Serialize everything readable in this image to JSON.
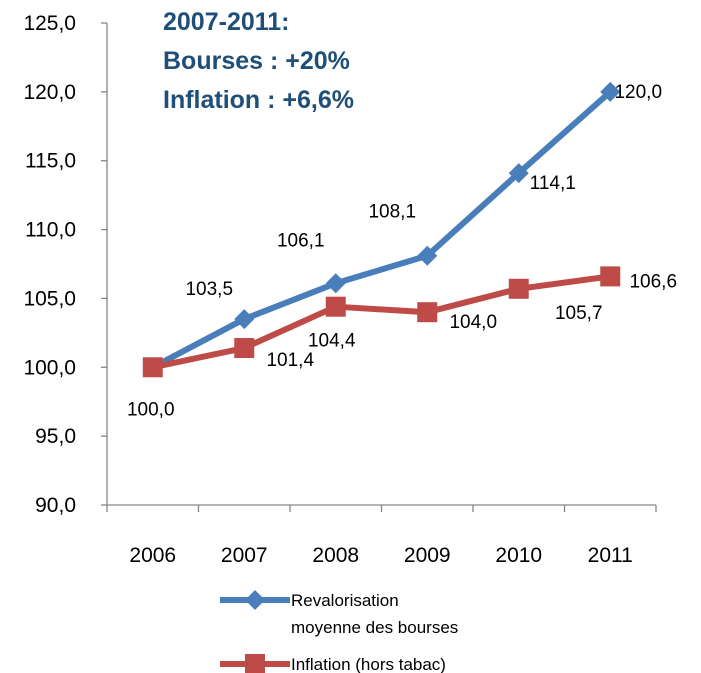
{
  "chart_data": {
    "type": "line",
    "categories": [
      "2006",
      "2007",
      "2008",
      "2009",
      "2010",
      "2011"
    ],
    "ylim": [
      90,
      125
    ],
    "yticks": [
      "90,0",
      "95,0",
      "100,0",
      "105,0",
      "110,0",
      "115,0",
      "120,0",
      "125,0"
    ],
    "grid": false,
    "legend_position": "bottom",
    "annotation": [
      "2007-2011:",
      "Bourses : +20%",
      "Inflation : +6,6%"
    ],
    "annotation_color": "#1F4E79",
    "series": [
      {
        "name_lines": [
          "Revalorisation",
          "moyenne des bourses"
        ],
        "color": "#4A7EBB",
        "marker": "diamond",
        "values": [
          100.0,
          103.5,
          106.1,
          108.1,
          114.1,
          120.0
        ],
        "labels": [
          "",
          "103,5",
          "106,1",
          "108,1",
          "114,1",
          "120,0"
        ]
      },
      {
        "name_lines": [
          "Inflation (hors tabac)"
        ],
        "color": "#BE4B48",
        "marker": "square",
        "values": [
          100.0,
          101.4,
          104.4,
          104.0,
          105.7,
          106.6
        ],
        "labels": [
          "100,0",
          "101,4",
          "104,4",
          "104,0",
          "105,7",
          "106,6"
        ]
      }
    ]
  }
}
